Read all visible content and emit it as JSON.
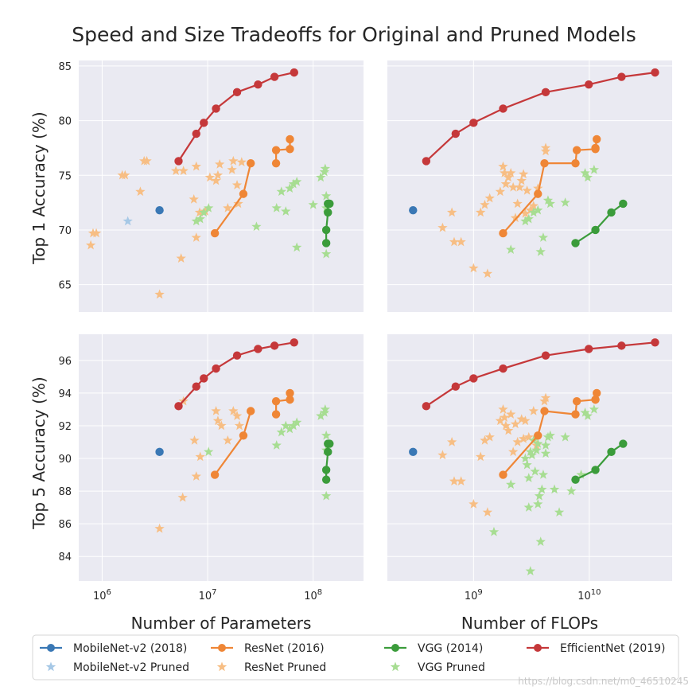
{
  "chart_data": {
    "type": "scatter",
    "title": "Speed and Size Tradeoffs for Original and Pruned Models",
    "colors": {
      "mobilenet": "#3a78b5",
      "mobilenet_pruned": "#a6c8e6",
      "resnet": "#ef8636",
      "resnet_pruned": "#f7be84",
      "vgg": "#3b9c3b",
      "vgg_pruned": "#a7dd92",
      "efficientnet": "#c5383a",
      "panel_bg": "#eaeaf2",
      "grid": "#ffffff"
    },
    "x_axes": {
      "params": {
        "label": "Number of Parameters",
        "scale": "log",
        "xlim": [
          600000,
          300000000
        ],
        "ticks": [
          {
            "v": 1000000,
            "b": "10",
            "e": "6"
          },
          {
            "v": 10000000,
            "b": "10",
            "e": "7"
          },
          {
            "v": 100000000,
            "b": "10",
            "e": "8"
          }
        ]
      },
      "flops": {
        "label": "Number of FLOPs",
        "scale": "log",
        "xlim": [
          180000000,
          52000000000
        ],
        "ticks": [
          {
            "v": 1000000000,
            "b": "10",
            "e": "9"
          },
          {
            "v": 10000000000,
            "b": "10",
            "e": "10"
          }
        ]
      }
    },
    "y_axes": {
      "top1": {
        "label": "Top 1 Accuracy (%)",
        "ylim": [
          62.5,
          85.5
        ],
        "ticks": [
          65,
          70,
          75,
          80,
          85
        ]
      },
      "top5": {
        "label": "Top 5 Accuracy (%)",
        "ylim": [
          82.5,
          97.6
        ],
        "ticks": [
          84,
          86,
          88,
          90,
          92,
          94,
          96
        ]
      }
    },
    "panels": [
      {
        "id": "params-top1",
        "x": "params",
        "y": "top1",
        "series": [
          {
            "name": "EfficientNet (2019)",
            "style": "line",
            "color": "efficientnet",
            "x": [
              5300000,
              7800000,
              9200000,
              12000000,
              19000000,
              30000000,
              43000000,
              66000000
            ],
            "y": [
              76.3,
              78.8,
              79.8,
              81.1,
              82.6,
              83.3,
              84.0,
              84.4
            ]
          },
          {
            "name": "ResNet (2016)",
            "style": "line",
            "color": "resnet",
            "x": [
              11700000,
              21800000,
              25600000
            ],
            "y": [
              69.7,
              73.3,
              76.1
            ]
          },
          {
            "name": "ResNet (2016)",
            "style": "line",
            "color": "resnet",
            "x": [
              44500000,
              44500000,
              60200000,
              60200000
            ],
            "y": [
              76.1,
              77.3,
              77.4,
              78.3
            ]
          },
          {
            "name": "VGG (2014)",
            "style": "line",
            "color": "vgg",
            "x": [
              133000000,
              133000000,
              138000000,
              138000000,
              143000000
            ],
            "y": [
              68.8,
              70.0,
              71.6,
              72.4,
              72.4
            ]
          },
          {
            "name": "MobileNet-v2 (2018)",
            "style": "marker",
            "color": "mobilenet",
            "x": [
              3500000
            ],
            "y": [
              71.8
            ]
          },
          {
            "name": "MobileNet-v2 Pruned",
            "style": "star",
            "color": "mobilenet_pruned",
            "x": [
              1750000
            ],
            "y": [
              70.8
            ]
          },
          {
            "name": "ResNet Pruned",
            "style": "star",
            "color": "resnet_pruned",
            "x": [
              780000,
              820000,
              880000,
              1550000,
              1650000,
              2300000,
              2500000,
              2650000,
              3500000,
              5000000,
              5600000,
              5900000,
              7400000,
              7800000,
              7800000,
              8400000,
              9500000,
              10500000,
              12000000,
              12500000,
              13000000,
              15500000,
              17000000,
              17500000,
              19000000,
              19500000,
              21000000
            ],
            "y": [
              68.6,
              69.7,
              69.7,
              75.0,
              75.0,
              73.5,
              76.3,
              76.3,
              64.1,
              75.4,
              67.4,
              75.4,
              72.8,
              75.8,
              69.3,
              71.6,
              71.7,
              74.8,
              74.5,
              75.0,
              76.0,
              72.0,
              75.5,
              76.3,
              74.1,
              72.4,
              76.2
            ]
          },
          {
            "name": "VGG Pruned",
            "style": "star",
            "color": "vgg_pruned",
            "x": [
              7800000,
              8500000,
              9200000,
              10200000,
              29000000,
              45000000,
              50000000,
              55000000,
              60000000,
              65000000,
              70000000,
              70000000,
              100000000,
              118000000,
              128000000,
              130000000,
              133000000,
              133000000,
              133000000
            ],
            "y": [
              70.8,
              71.0,
              71.6,
              72.0,
              70.3,
              72.0,
              73.5,
              71.7,
              73.8,
              74.2,
              74.4,
              68.4,
              72.3,
              74.8,
              75.3,
              75.6,
              73.1,
              72.0,
              67.8
            ]
          }
        ]
      },
      {
        "id": "flops-top1",
        "x": "flops",
        "y": "top1",
        "series": [
          {
            "name": "EfficientNet (2019)",
            "style": "line",
            "color": "efficientnet",
            "x": [
              390000000,
              700000000,
              1000000000,
              1800000000,
              4200000000,
              9900000000,
              19000000000,
              37000000000
            ],
            "y": [
              76.3,
              78.8,
              79.8,
              81.1,
              82.6,
              83.3,
              84.0,
              84.4
            ]
          },
          {
            "name": "ResNet (2016)",
            "style": "line",
            "color": "resnet",
            "x": [
              1800000000,
              3600000000,
              4100000000,
              7600000000,
              7800000000,
              11300000000,
              11600000000,
              11300000000
            ],
            "y": [
              69.7,
              73.3,
              76.1,
              76.1,
              77.3,
              77.4,
              78.3,
              77.5
            ]
          },
          {
            "name": "VGG (2014)",
            "style": "line",
            "color": "vgg",
            "x": [
              7600000000,
              11300000000,
              15500000000,
              19600000000
            ],
            "y": [
              68.8,
              70.0,
              71.6,
              72.4
            ]
          },
          {
            "name": "MobileNet-v2 (2018)",
            "style": "marker",
            "color": "mobilenet",
            "x": [
              300000000
            ],
            "y": [
              71.8
            ]
          },
          {
            "name": "ResNet Pruned",
            "style": "star",
            "color": "resnet_pruned",
            "x": [
              540000000,
              650000000,
              680000000,
              780000000,
              1000000000,
              1150000000,
              1250000000,
              1320000000,
              1380000000,
              1700000000,
              1800000000,
              1850000000,
              1900000000,
              2000000000,
              2100000000,
              2200000000,
              2300000000,
              2400000000,
              2500000000,
              2600000000,
              2700000000,
              2800000000,
              2900000000,
              3100000000,
              3300000000,
              3600000000,
              4200000000,
              4200000000
            ],
            "y": [
              70.2,
              71.6,
              68.9,
              68.9,
              66.5,
              71.6,
              72.3,
              66.0,
              72.9,
              73.5,
              75.8,
              75.2,
              74.2,
              74.8,
              75.2,
              73.9,
              71.1,
              72.4,
              73.9,
              74.5,
              75.1,
              71.5,
              73.6,
              71.8,
              72.2,
              73.8,
              77.2,
              77.5
            ]
          },
          {
            "name": "VGG Pruned",
            "style": "star",
            "color": "vgg_pruned",
            "x": [
              2100000000,
              2800000000,
              3000000000,
              3300000000,
              3600000000,
              3800000000,
              4000000000,
              4400000000,
              4600000000,
              6200000000,
              9200000000,
              9700000000,
              11000000000
            ],
            "y": [
              68.2,
              70.8,
              71.0,
              71.6,
              71.8,
              68.0,
              69.3,
              72.7,
              72.4,
              72.5,
              75.2,
              74.8,
              75.5
            ]
          }
        ]
      },
      {
        "id": "params-top5",
        "x": "params",
        "y": "top5",
        "series": [
          {
            "name": "EfficientNet (2019)",
            "style": "line",
            "color": "efficientnet",
            "x": [
              5300000,
              7800000,
              9200000,
              12000000,
              19000000,
              30000000,
              43000000,
              66000000
            ],
            "y": [
              93.2,
              94.4,
              94.9,
              95.5,
              96.3,
              96.7,
              96.9,
              97.1
            ]
          },
          {
            "name": "ResNet (2016)",
            "style": "line",
            "color": "resnet",
            "x": [
              11700000,
              21800000,
              25600000
            ],
            "y": [
              89.0,
              91.4,
              92.9
            ]
          },
          {
            "name": "ResNet (2016)",
            "style": "line",
            "color": "resnet",
            "x": [
              44500000,
              44500000,
              60200000,
              60200000
            ],
            "y": [
              92.7,
              93.5,
              93.6,
              94.0
            ]
          },
          {
            "name": "VGG (2014)",
            "style": "line",
            "color": "vgg",
            "x": [
              133000000,
              133000000,
              138000000,
              138000000,
              143000000
            ],
            "y": [
              88.7,
              89.3,
              90.4,
              90.9,
              90.9
            ]
          },
          {
            "name": "MobileNet-v2 (2018)",
            "style": "marker",
            "color": "mobilenet",
            "x": [
              3500000
            ],
            "y": [
              90.4
            ]
          },
          {
            "name": "ResNet Pruned",
            "style": "star",
            "color": "resnet_pruned",
            "x": [
              3500000,
              5800000,
              5900000,
              7500000,
              7800000,
              8500000,
              12000000,
              12500000,
              13500000,
              15500000,
              17500000,
              19000000,
              20000000
            ],
            "y": [
              85.7,
              87.6,
              93.5,
              91.1,
              88.9,
              90.1,
              92.9,
              92.3,
              92.0,
              91.1,
              92.9,
              92.6,
              92.0
            ]
          },
          {
            "name": "VGG Pruned",
            "style": "star",
            "color": "vgg_pruned",
            "x": [
              10200000,
              45000000,
              50000000,
              55000000,
              60000000,
              65000000,
              70000000,
              118000000,
              128000000,
              130000000,
              133000000,
              133000000,
              133000000
            ],
            "y": [
              90.4,
              90.8,
              91.6,
              92.0,
              91.8,
              92.0,
              92.2,
              92.6,
              92.8,
              93.0,
              91.4,
              90.5,
              87.7
            ]
          }
        ]
      },
      {
        "id": "flops-top5",
        "x": "flops",
        "y": "top5",
        "series": [
          {
            "name": "EfficientNet (2019)",
            "style": "line",
            "color": "efficientnet",
            "x": [
              390000000,
              700000000,
              1000000000,
              1800000000,
              4200000000,
              9900000000,
              19000000000,
              37000000000
            ],
            "y": [
              93.2,
              94.4,
              94.9,
              95.5,
              96.3,
              96.7,
              96.9,
              97.1
            ]
          },
          {
            "name": "ResNet (2016)",
            "style": "line",
            "color": "resnet",
            "x": [
              1800000000,
              3600000000,
              4100000000,
              7600000000,
              7800000000,
              11300000000,
              11600000000,
              11300000000
            ],
            "y": [
              89.0,
              91.4,
              92.9,
              92.7,
              93.5,
              93.6,
              94.0,
              93.6
            ]
          },
          {
            "name": "VGG (2014)",
            "style": "line",
            "color": "vgg",
            "x": [
              7600000000,
              11300000000,
              15500000000,
              19600000000
            ],
            "y": [
              88.7,
              89.3,
              90.4,
              90.9
            ]
          },
          {
            "name": "MobileNet-v2 (2018)",
            "style": "marker",
            "color": "mobilenet",
            "x": [
              300000000
            ],
            "y": [
              90.4
            ]
          },
          {
            "name": "ResNet Pruned",
            "style": "star",
            "color": "resnet_pruned",
            "x": [
              540000000,
              650000000,
              680000000,
              780000000,
              1000000000,
              1150000000,
              1250000000,
              1320000000,
              1380000000,
              1700000000,
              1800000000,
              1850000000,
              1900000000,
              2000000000,
              2100000000,
              2200000000,
              2300000000,
              2400000000,
              2600000000,
              2700000000,
              2800000000,
              3000000000,
              3300000000,
              3500000000,
              4100000000,
              4200000000
            ],
            "y": [
              90.2,
              91.0,
              88.6,
              88.6,
              87.2,
              90.1,
              91.1,
              86.7,
              91.3,
              92.3,
              93.0,
              92.5,
              92.0,
              91.7,
              92.7,
              90.4,
              92.1,
              91.0,
              92.4,
              91.2,
              92.3,
              91.3,
              92.9,
              90.8,
              93.5,
              93.7
            ]
          },
          {
            "name": "VGG Pruned",
            "style": "star",
            "color": "vgg_pruned",
            "x": [
              1500000000,
              2100000000,
              2800000000,
              2900000000,
              3000000000,
              3100000000,
              3200000000,
              3300000000,
              3400000000,
              3500000000,
              3600000000,
              3700000000,
              3800000000,
              3900000000,
              4000000000,
              4200000000,
              4400000000,
              4600000000,
              5000000000,
              5500000000,
              6200000000,
              7000000000,
              8500000000,
              9200000000,
              9700000000,
              11000000000,
              3000000000,
              3600000000,
              4200000000,
              3100000000
            ],
            "y": [
              85.5,
              88.4,
              90.0,
              89.6,
              88.8,
              90.4,
              90.2,
              91.1,
              89.2,
              90.5,
              90.9,
              87.7,
              84.9,
              88.1,
              89.0,
              90.3,
              91.3,
              91.4,
              88.1,
              86.7,
              91.3,
              88.0,
              89.0,
              92.8,
              92.6,
              93.0,
              87.0,
              87.2,
              90.8,
              83.1
            ]
          }
        ]
      }
    ],
    "legend": {
      "position": "bottom",
      "entries": [
        {
          "label": "MobileNet-v2 (2018)",
          "style": "line",
          "color": "mobilenet"
        },
        {
          "label": "ResNet (2016)",
          "style": "line",
          "color": "resnet"
        },
        {
          "label": "VGG (2014)",
          "style": "line",
          "color": "vgg"
        },
        {
          "label": "EfficientNet (2019)",
          "style": "line",
          "color": "efficientnet"
        },
        {
          "label": "MobileNet-v2 Pruned",
          "style": "star",
          "color": "mobilenet_pruned"
        },
        {
          "label": "ResNet Pruned",
          "style": "star",
          "color": "resnet_pruned"
        },
        {
          "label": "VGG Pruned",
          "style": "star",
          "color": "vgg_pruned"
        }
      ]
    },
    "watermark": "https://blog.csdn.net/m0_46510245"
  }
}
